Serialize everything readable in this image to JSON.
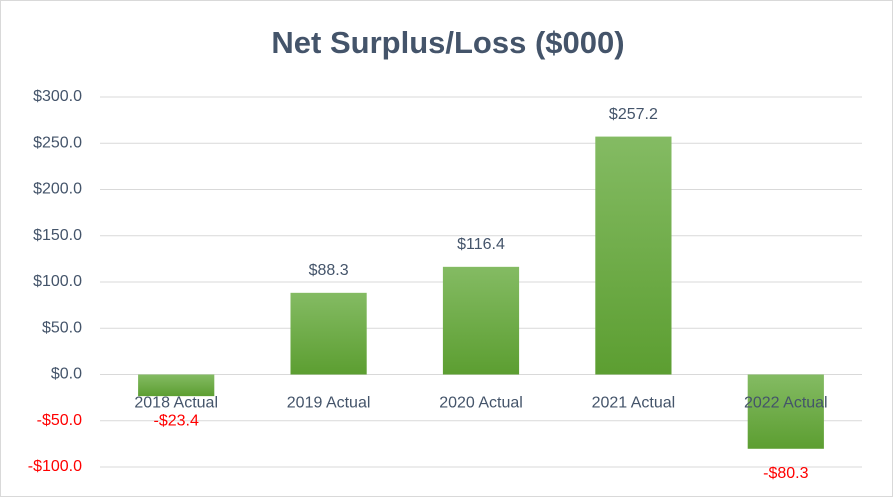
{
  "chart_data": {
    "type": "bar",
    "title": "Net Surplus/Loss ($000)",
    "categories": [
      "2018 Actual",
      "2019 Actual",
      "2020 Actual",
      "2021 Actual",
      "2022 Actual"
    ],
    "values": [
      -23.4,
      88.3,
      116.4,
      257.2,
      -80.3
    ],
    "value_labels": [
      "-$23.4",
      "$88.3",
      "$116.4",
      "$257.2",
      "-$80.3"
    ],
    "color": "#6aaa3f",
    "negative_label_color": "#ff0000",
    "ylim": [
      -100,
      300
    ],
    "yticks": [
      {
        "value": -100,
        "label": "-$100.0"
      },
      {
        "value": -50,
        "label": "-$50.0"
      },
      {
        "value": 0,
        "label": "$0.0"
      },
      {
        "value": 50,
        "label": "$50.0"
      },
      {
        "value": 100,
        "label": "$100.0"
      },
      {
        "value": 150,
        "label": "$150.0"
      },
      {
        "value": 200,
        "label": "$200.0"
      },
      {
        "value": 250,
        "label": "$250.0"
      },
      {
        "value": 300,
        "label": "$300.0"
      }
    ],
    "grid": true
  }
}
